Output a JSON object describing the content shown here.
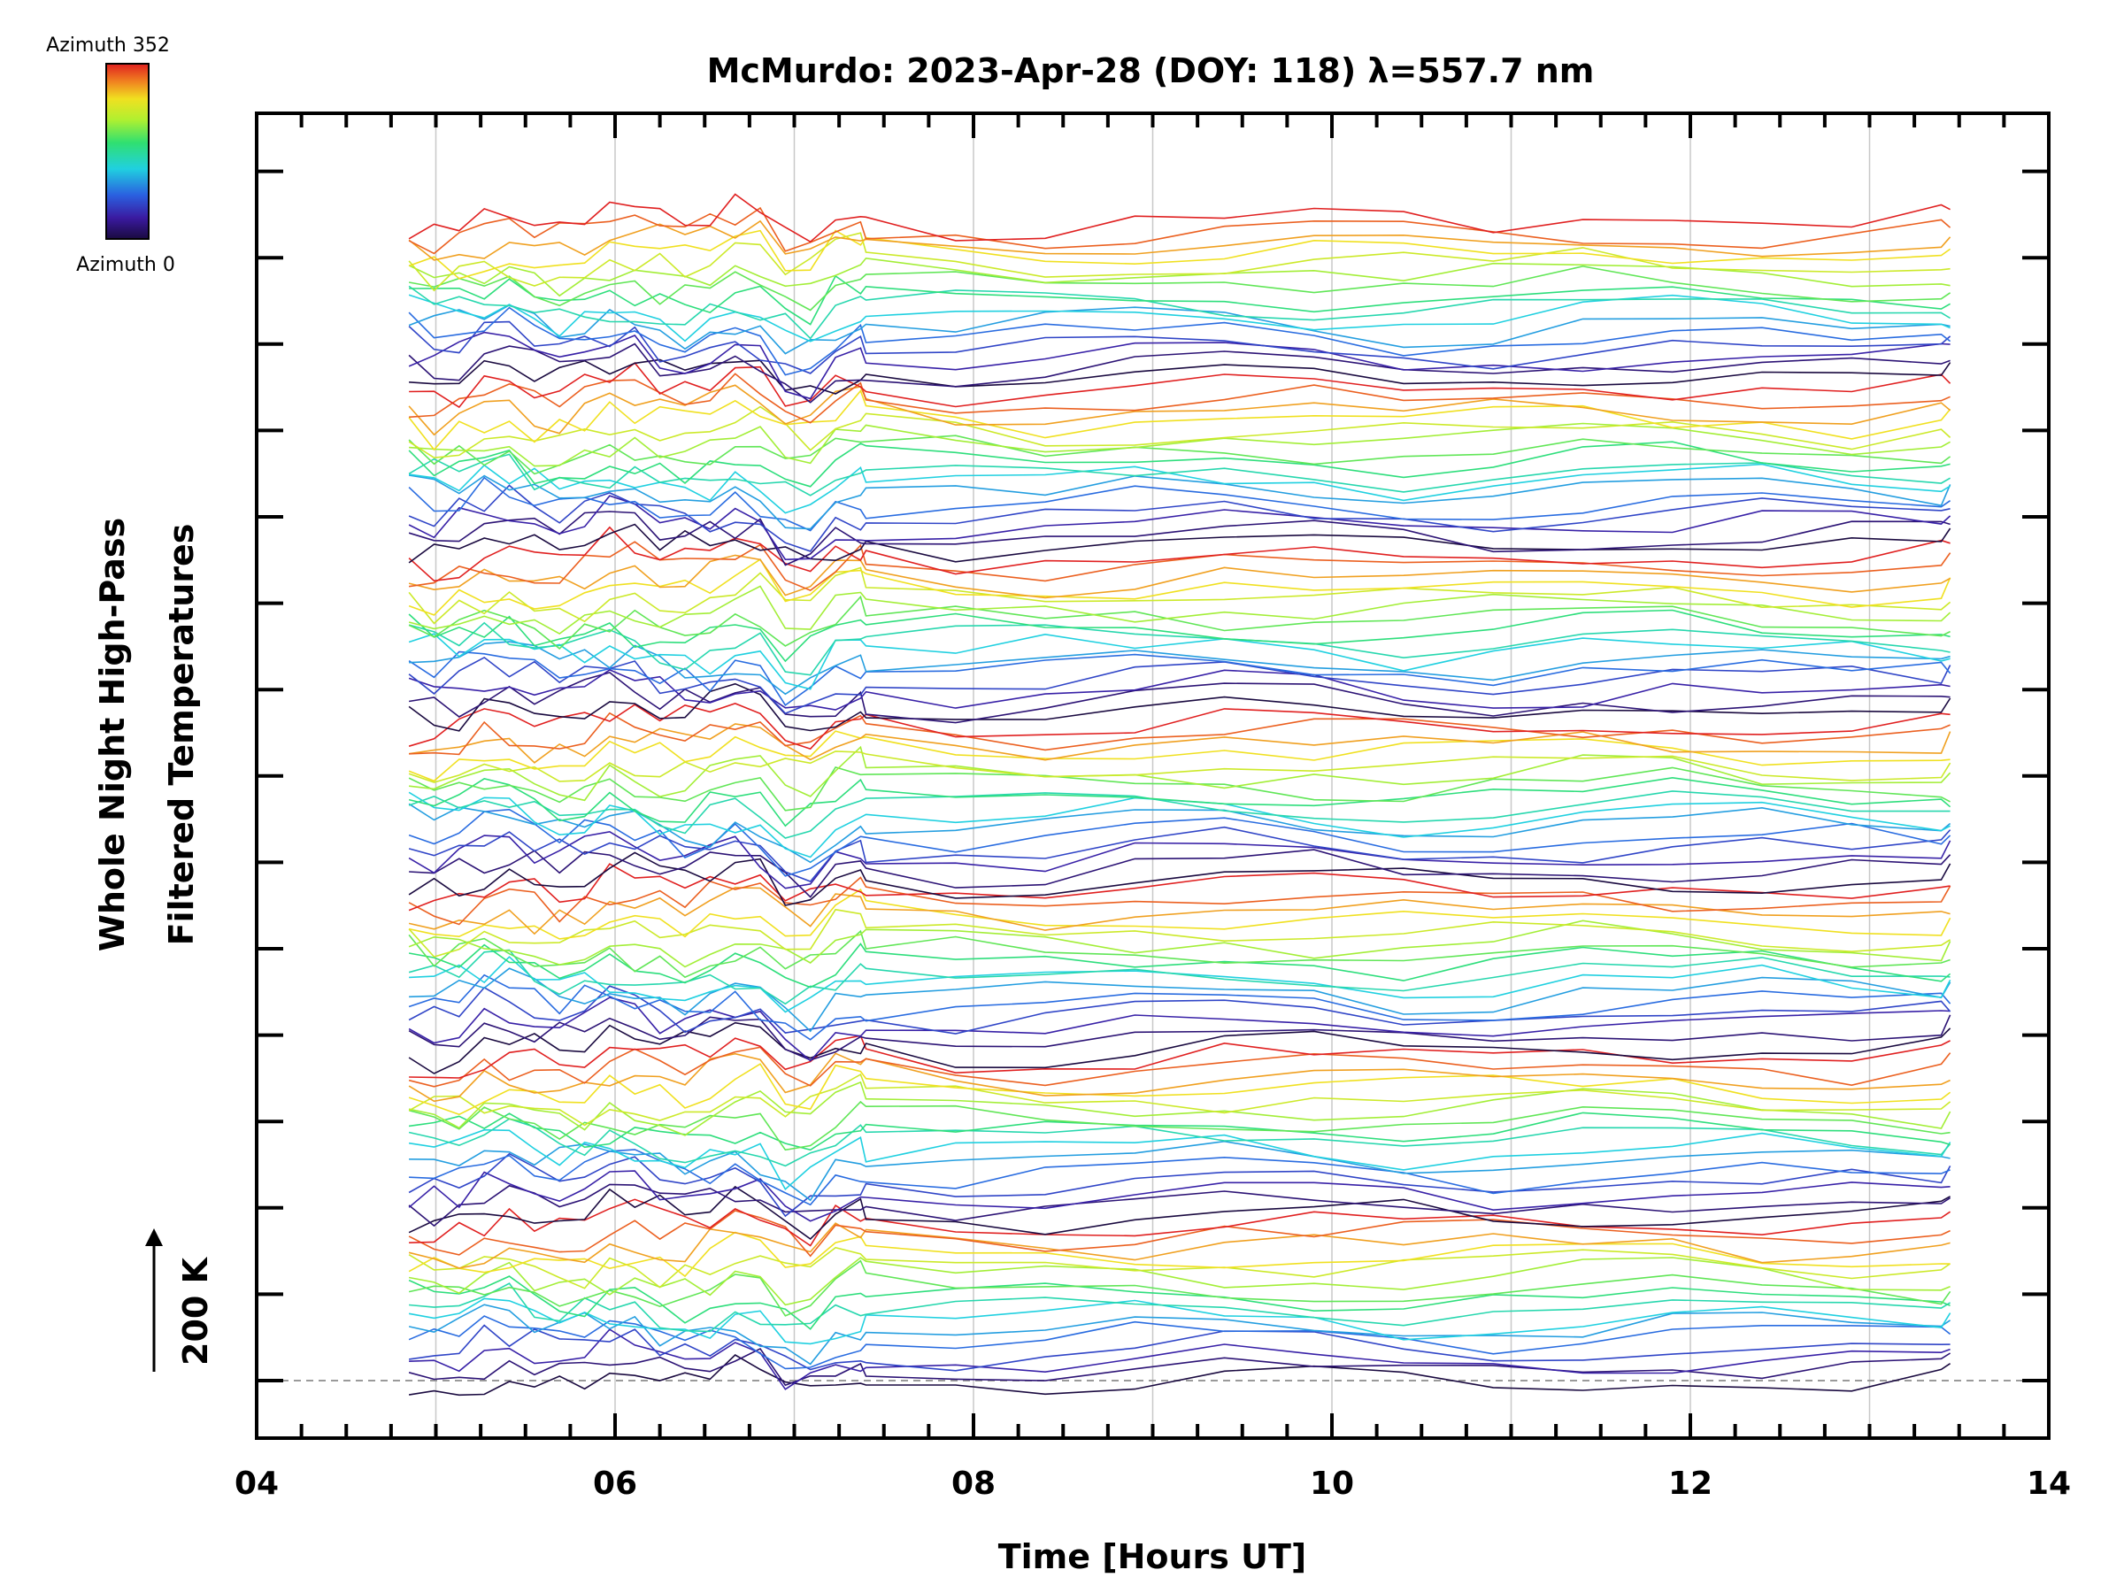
{
  "chart_data": {
    "type": "line",
    "title": "McMurdo: 2023-Apr-28 (DOY: 118) λ=557.7 nm",
    "xlabel": "Time [Hours UT]",
    "ylabel_line1": "Whole Night High-Pass",
    "ylabel_line2": "Filtered Temperatures",
    "xlim": [
      4,
      14
    ],
    "x_ticks": [
      "04",
      "06",
      "08",
      "10",
      "12",
      "14"
    ],
    "y_scale_label": "200 K",
    "grid": true,
    "colorbar": {
      "top_label": "Azimuth 352",
      "bottom_label": "Azimuth 0",
      "colormap": "rainbow",
      "min": 0,
      "max": 352
    },
    "stacked_traces": 112,
    "time_start_hours": 4.85,
    "time_end_hours": 13.45
  },
  "colors": {
    "axis": "#000000",
    "grid": "#c8c8c8",
    "baseline": "#9a9a9a"
  }
}
